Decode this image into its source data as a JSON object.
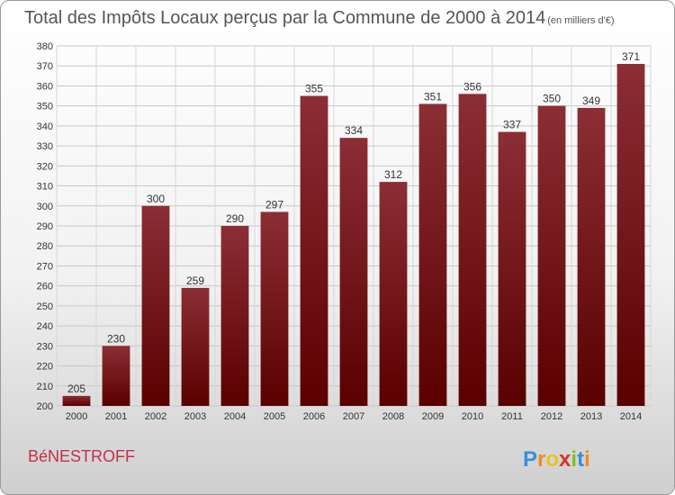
{
  "chart_data": {
    "type": "bar",
    "title": "Total des Impôts Locaux perçus par la Commune de 2000 à 2014",
    "unit_note": "(en milliers d'€)",
    "categories": [
      "2000",
      "2001",
      "2002",
      "2003",
      "2004",
      "2005",
      "2006",
      "2007",
      "2008",
      "2009",
      "2010",
      "2011",
      "2012",
      "2013",
      "2014"
    ],
    "values": [
      205,
      230,
      300,
      259,
      290,
      297,
      355,
      334,
      312,
      351,
      356,
      337,
      350,
      349,
      371
    ],
    "ylim": [
      200,
      380
    ],
    "ytick_step": 10,
    "grid": true,
    "bar_color_top": "#8b2e35",
    "bar_color_bottom": "#5a0000"
  },
  "footer": {
    "commune": "BéNESTROFF",
    "brand": [
      "P",
      "r",
      "o",
      "x",
      "i",
      "t",
      "i"
    ],
    "brand_colors": [
      "#3a8fd6",
      "#f08a1c",
      "#e8c41a",
      "#d9332b",
      "#7bbf2a",
      "#3a8fd6",
      "#f08a1c"
    ]
  }
}
